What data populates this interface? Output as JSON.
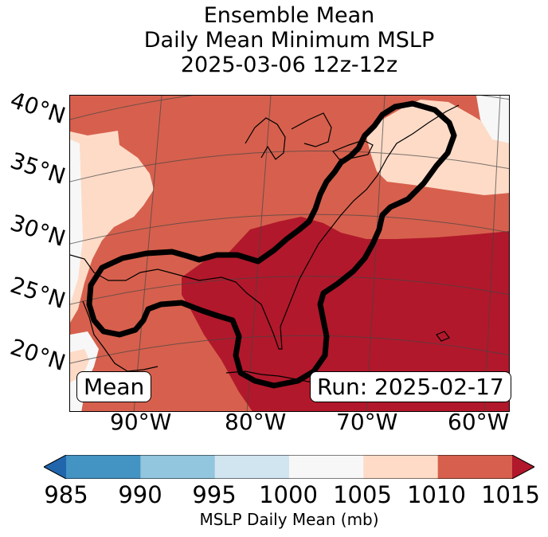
{
  "title": {
    "line1": "Ensemble Mean",
    "line2": "Daily Mean Minimum MSLP",
    "line3": "2025-03-06 12z-12z"
  },
  "map": {
    "lat_labels": [
      "40°N",
      "35°N",
      "30°N",
      "25°N",
      "20°N"
    ],
    "lon_labels": [
      "90°W",
      "80°W",
      "70°W",
      "60°W"
    ],
    "left_box_label": "Mean",
    "right_box_label": "Run: 2025-02-17",
    "field_colors": {
      "c1000_1005": "#f7f7f7",
      "c1005_1010": "#fddbc7",
      "c1010_1015": "#d6604d",
      "c1015_plus": "#b2182b"
    }
  },
  "colorbar": {
    "label": "MSLP Daily Mean (mb)",
    "ticks": [
      "985",
      "990",
      "995",
      "1000",
      "1005",
      "1010",
      "1015"
    ],
    "bins": [
      {
        "range": "<985",
        "color": "#2166ac"
      },
      {
        "range": "985-990",
        "color": "#4393c3"
      },
      {
        "range": "990-995",
        "color": "#92c5de"
      },
      {
        "range": "995-1000",
        "color": "#d1e5f0"
      },
      {
        "range": "1000-1005",
        "color": "#f7f7f7"
      },
      {
        "range": "1005-1010",
        "color": "#fddbc7"
      },
      {
        "range": "1010-1015",
        "color": "#d6604d"
      },
      {
        "range": ">1015",
        "color": "#b2182b"
      }
    ]
  }
}
